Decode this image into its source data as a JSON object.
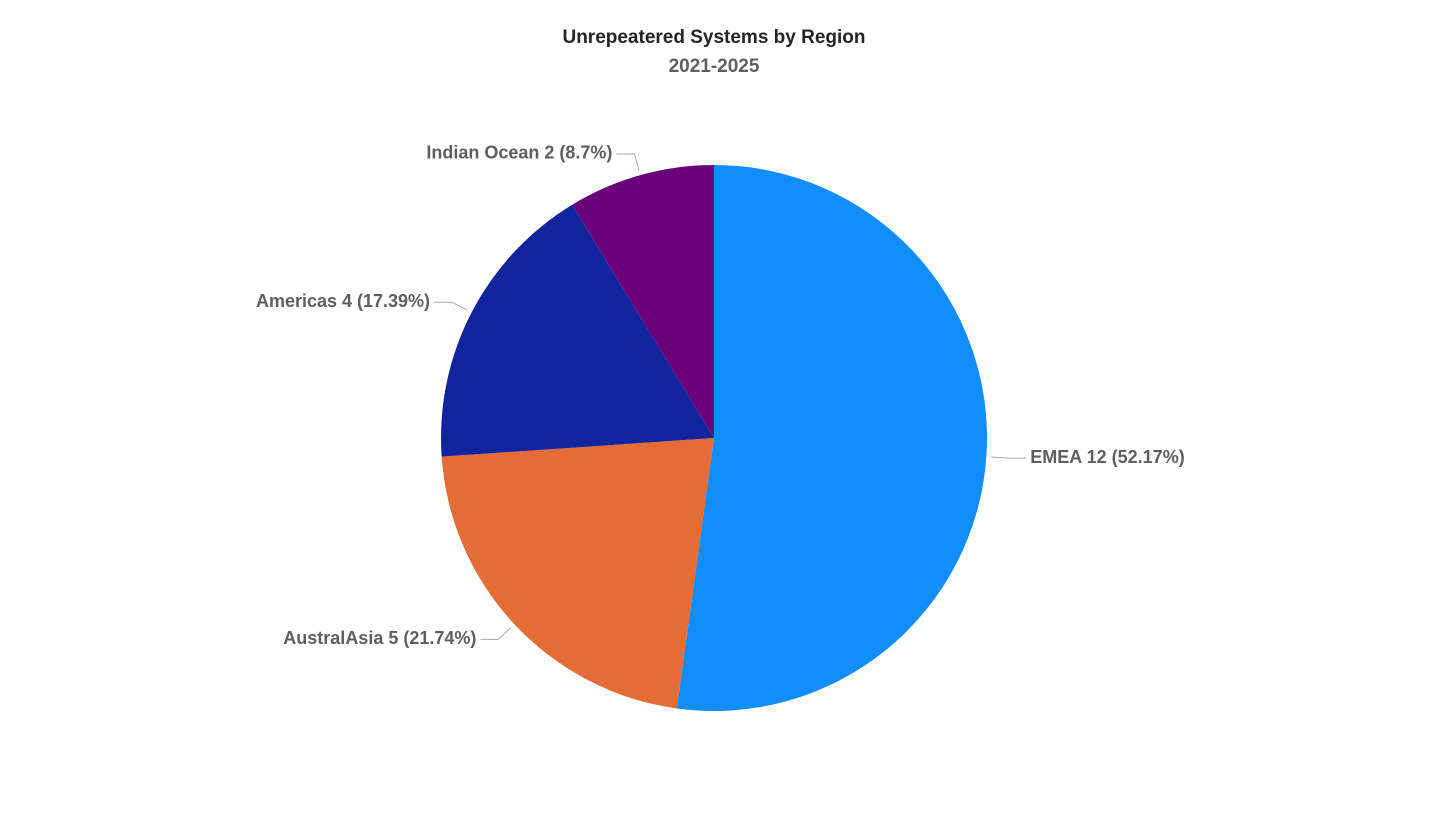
{
  "chart_data": {
    "type": "pie",
    "title": "Unrepeatered Systems by Region",
    "subtitle": "2021-2025",
    "categories": [
      "EMEA",
      "AustralAsia",
      "Americas",
      "Indian Ocean"
    ],
    "values": [
      12,
      5,
      4,
      2
    ],
    "value_labels": [
      "EMEA 12 (52.17%)",
      "AustralAsia 5 (21.74%)",
      "Americas 4 (17.39%)",
      "Indian Ocean 2 (8.7%)"
    ],
    "colors": [
      "#118dff",
      "#e66c37",
      "#12239e",
      "#6b007b"
    ]
  }
}
